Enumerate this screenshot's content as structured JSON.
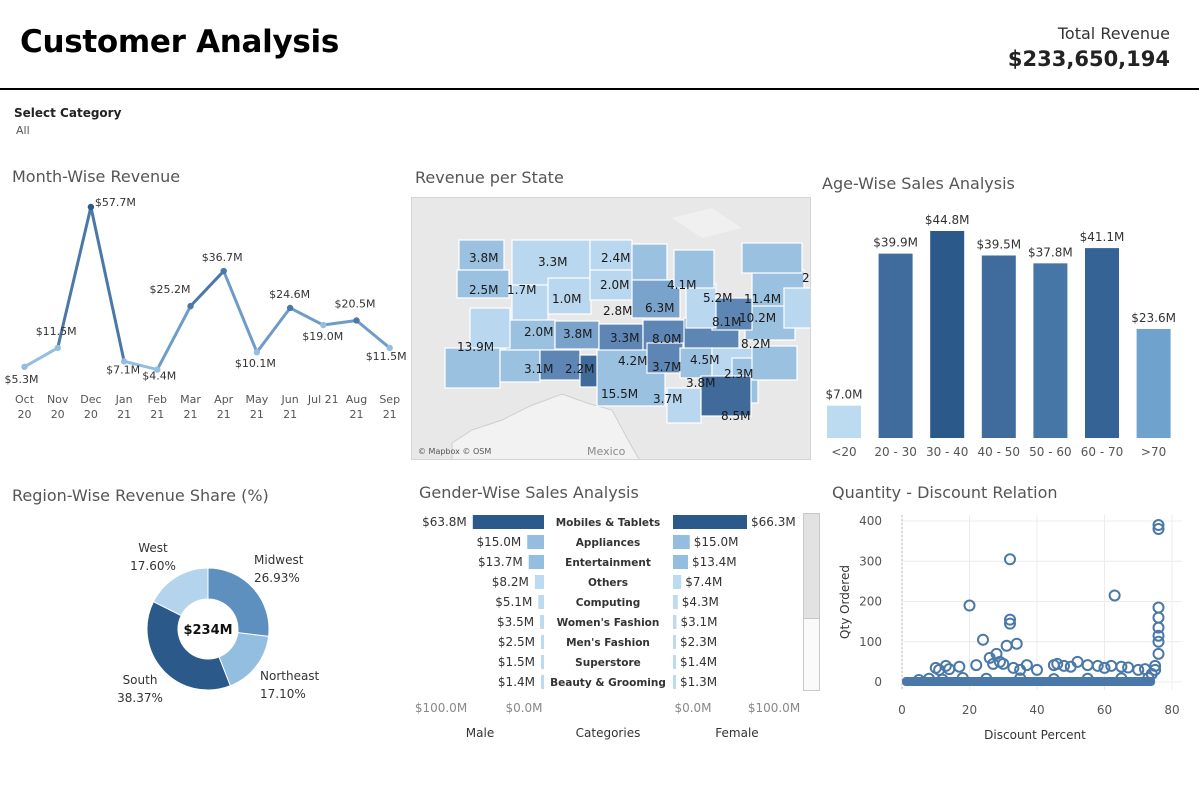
{
  "header": {
    "title": "Customer Analysis",
    "revenue_label": "Total Revenue",
    "revenue_value": "$233,650,194"
  },
  "filter": {
    "label": "Select Category",
    "value": "All"
  },
  "colors": {
    "dark": "#2b5989",
    "mid": "#4a78a8",
    "light": "#93bedf",
    "pale": "#bcdbf1"
  },
  "chart_data": [
    {
      "type": "line",
      "title": "Month-Wise Revenue",
      "categories": [
        "Oct 20",
        "Nov 20",
        "Dec 20",
        "Jan 21",
        "Feb 21",
        "Mar 21",
        "Apr 21",
        "May 21",
        "Jun 21",
        "Jul 21",
        "Aug 21",
        "Sep 21"
      ],
      "tick_labels": [
        [
          "Oct",
          "20"
        ],
        [
          "Nov",
          "20"
        ],
        [
          "Dec",
          "20"
        ],
        [
          "Jan",
          "21"
        ],
        [
          "Feb",
          "21"
        ],
        [
          "Mar",
          "21"
        ],
        [
          "Apr",
          "21"
        ],
        [
          "May",
          "21"
        ],
        [
          "Jun",
          "21"
        ],
        [
          "Jul 21",
          ""
        ],
        [
          "Aug",
          "21"
        ],
        [
          "Sep",
          "21"
        ]
      ],
      "values": [
        5.3,
        11.5,
        57.7,
        7.1,
        4.4,
        25.2,
        36.7,
        10.1,
        24.6,
        19.0,
        20.5,
        11.5
      ],
      "labels": [
        "$5.3M",
        "$11.5M",
        "$57.7M",
        "$7.1M",
        "$4.4M",
        "$25.2M",
        "$36.7M",
        "$10.1M",
        "$24.6M",
        "$19.0M",
        "$20.5M",
        "$11.5M"
      ],
      "grid": false
    },
    {
      "type": "map",
      "title": "Revenue per State",
      "labels": [
        "3.8M",
        "3.3M",
        "2.4M",
        "2.5M",
        "1.7M",
        "1.0M",
        "2.0M",
        "2.8M",
        "6.3M",
        "4.1M",
        "5.2M",
        "11.4M",
        "8.1M",
        "10.2M",
        "2.0M",
        "3.8M",
        "3.3M",
        "8.0M",
        "13.9M",
        "4.2M",
        "8.2M",
        "3.1M",
        "2.2M",
        "3.7M",
        "4.5M",
        "2.3M",
        "15.5M",
        "3.8M",
        "3.7M",
        "8.5M",
        "2"
      ],
      "attribution": "© Mapbox © OSM",
      "place_label": "Mexico"
    },
    {
      "type": "bar",
      "title": "Age-Wise Sales Analysis",
      "categories": [
        "<20",
        "20 - 30",
        "30 - 40",
        "40 - 50",
        "50 - 60",
        "60 - 70",
        ">70"
      ],
      "values": [
        7.0,
        39.9,
        44.8,
        39.5,
        37.8,
        41.1,
        23.6
      ],
      "labels": [
        "$7.0M",
        "$39.9M",
        "$44.8M",
        "$39.5M",
        "$37.8M",
        "$41.1M",
        "$23.6M"
      ],
      "grid": false
    },
    {
      "type": "pie",
      "title": "Region-Wise Revenue Share (%)",
      "center_label": "$234M",
      "slices": [
        {
          "name": "Midwest",
          "percent": 26.93,
          "label": "26.93%"
        },
        {
          "name": "Northeast",
          "percent": 17.1,
          "label": "17.10%"
        },
        {
          "name": "South",
          "percent": 38.37,
          "label": "38.37%"
        },
        {
          "name": "West",
          "percent": 17.6,
          "label": "17.60%"
        }
      ]
    },
    {
      "type": "bar",
      "title": "Gender-Wise Sales Analysis",
      "categories": [
        "Mobiles & Tablets",
        "Appliances",
        "Entertainment",
        "Others",
        "Computing",
        "Women's Fashion",
        "Men's Fashion",
        "Superstore",
        "Beauty & Grooming"
      ],
      "series": [
        {
          "name": "Male",
          "values": [
            63.8,
            15.0,
            13.7,
            8.2,
            5.1,
            3.5,
            2.5,
            1.5,
            1.4
          ],
          "labels": [
            "$63.8M",
            "$15.0M",
            "$13.7M",
            "$8.2M",
            "$5.1M",
            "$3.5M",
            "$2.5M",
            "$1.5M",
            "$1.4M"
          ]
        },
        {
          "name": "Female",
          "values": [
            66.3,
            15.0,
            13.4,
            7.4,
            4.3,
            3.1,
            2.3,
            1.4,
            1.3
          ],
          "labels": [
            "$66.3M",
            "$15.0M",
            "$13.4M",
            "$7.4M",
            "$4.3M",
            "$3.1M",
            "$2.3M",
            "$1.4M",
            "$1.3M"
          ]
        }
      ],
      "xlabels": {
        "male": "Male",
        "categories": "Categories",
        "female": "Female"
      },
      "male_ticks": [
        "$100.0M",
        "$0.0M"
      ],
      "female_ticks": [
        "$0.0M",
        "$100.0M"
      ]
    },
    {
      "type": "scatter",
      "title": "Quantity - Discount Relation",
      "xlabel": "Discount Percent",
      "ylabel": "Qty Ordered",
      "xlim": [
        0,
        80
      ],
      "ylim": [
        0,
        400
      ],
      "xticks": [
        0,
        20,
        40,
        60,
        80
      ],
      "yticks": [
        0,
        100,
        200,
        300,
        400
      ],
      "grid": true,
      "points": [
        [
          10,
          35
        ],
        [
          11,
          30
        ],
        [
          13,
          40
        ],
        [
          14,
          32
        ],
        [
          17,
          38
        ],
        [
          20,
          190
        ],
        [
          22,
          42
        ],
        [
          24,
          105
        ],
        [
          26,
          60
        ],
        [
          27,
          45
        ],
        [
          28,
          70
        ],
        [
          29,
          50
        ],
        [
          30,
          45
        ],
        [
          31,
          90
        ],
        [
          32,
          155
        ],
        [
          32,
          145
        ],
        [
          32,
          305
        ],
        [
          33,
          35
        ],
        [
          34,
          95
        ],
        [
          35,
          30
        ],
        [
          37,
          42
        ],
        [
          40,
          30
        ],
        [
          45,
          42
        ],
        [
          46,
          45
        ],
        [
          48,
          40
        ],
        [
          50,
          38
        ],
        [
          52,
          50
        ],
        [
          55,
          42
        ],
        [
          58,
          40
        ],
        [
          60,
          35
        ],
        [
          62,
          40
        ],
        [
          63,
          215
        ],
        [
          65,
          38
        ],
        [
          67,
          36
        ],
        [
          70,
          30
        ],
        [
          72,
          32
        ],
        [
          75,
          30
        ],
        [
          75,
          40
        ],
        [
          76,
          70
        ],
        [
          76,
          100
        ],
        [
          76,
          115
        ],
        [
          76,
          135
        ],
        [
          76,
          160
        ],
        [
          76,
          185
        ],
        [
          76,
          380
        ],
        [
          76,
          390
        ],
        [
          5,
          5
        ],
        [
          8,
          8
        ],
        [
          12,
          6
        ],
        [
          18,
          10
        ],
        [
          25,
          8
        ],
        [
          35,
          9
        ],
        [
          45,
          7
        ],
        [
          55,
          8
        ],
        [
          65,
          9
        ],
        [
          73,
          10
        ],
        [
          74,
          20
        ]
      ]
    }
  ]
}
